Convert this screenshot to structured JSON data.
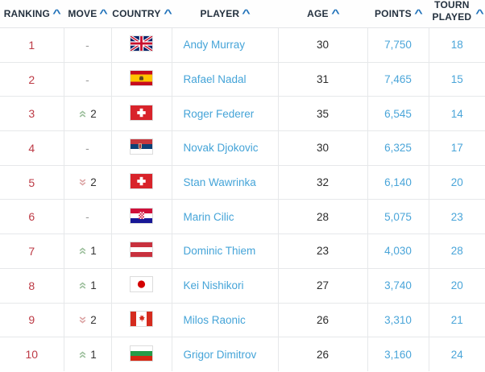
{
  "table": {
    "sort_caret": "^",
    "headers": [
      {
        "id": "ranking",
        "label": "RANKING"
      },
      {
        "id": "move",
        "label": "MOVE"
      },
      {
        "id": "country",
        "label": "COUNTRY"
      },
      {
        "id": "player",
        "label": "PLAYER"
      },
      {
        "id": "age",
        "label": "AGE"
      },
      {
        "id": "points",
        "label": "POINTS"
      },
      {
        "id": "tourn_played",
        "label": "TOURN PLAYED"
      }
    ],
    "rows": [
      {
        "ranking": "1",
        "move_dir": "none",
        "move_label": "-",
        "country_code": "gbr",
        "country": "Great Britain",
        "player": "Andy Murray",
        "age": "30",
        "points": "7,750",
        "tourn_played": "18"
      },
      {
        "ranking": "2",
        "move_dir": "none",
        "move_label": "-",
        "country_code": "esp",
        "country": "Spain",
        "player": "Rafael Nadal",
        "age": "31",
        "points": "7,465",
        "tourn_played": "15"
      },
      {
        "ranking": "3",
        "move_dir": "up",
        "move_label": "2",
        "country_code": "sui",
        "country": "Switzerland",
        "player": "Roger Federer",
        "age": "35",
        "points": "6,545",
        "tourn_played": "14"
      },
      {
        "ranking": "4",
        "move_dir": "none",
        "move_label": "-",
        "country_code": "srb",
        "country": "Serbia",
        "player": "Novak Djokovic",
        "age": "30",
        "points": "6,325",
        "tourn_played": "17"
      },
      {
        "ranking": "5",
        "move_dir": "down",
        "move_label": "2",
        "country_code": "sui",
        "country": "Switzerland",
        "player": "Stan Wawrinka",
        "age": "32",
        "points": "6,140",
        "tourn_played": "20"
      },
      {
        "ranking": "6",
        "move_dir": "none",
        "move_label": "-",
        "country_code": "cro",
        "country": "Croatia",
        "player": "Marin Cilic",
        "age": "28",
        "points": "5,075",
        "tourn_played": "23"
      },
      {
        "ranking": "7",
        "move_dir": "up",
        "move_label": "1",
        "country_code": "aut",
        "country": "Austria",
        "player": "Dominic Thiem",
        "age": "23",
        "points": "4,030",
        "tourn_played": "28"
      },
      {
        "ranking": "8",
        "move_dir": "up",
        "move_label": "1",
        "country_code": "jpn",
        "country": "Japan",
        "player": "Kei Nishikori",
        "age": "27",
        "points": "3,740",
        "tourn_played": "20"
      },
      {
        "ranking": "9",
        "move_dir": "down",
        "move_label": "2",
        "country_code": "can",
        "country": "Canada",
        "player": "Milos Raonic",
        "age": "26",
        "points": "3,310",
        "tourn_played": "21"
      },
      {
        "ranking": "10",
        "move_dir": "up",
        "move_label": "1",
        "country_code": "bul",
        "country": "Bulgaria",
        "player": "Grigor Dimitrov",
        "age": "26",
        "points": "3,160",
        "tourn_played": "24"
      }
    ]
  },
  "colors": {
    "header_text": "#24313f",
    "sort_caret_blue": "#2273ba",
    "rank_red": "#bd3a45",
    "link_blue": "#45a4d8",
    "age_text": "#2b2b2b",
    "move_up_green": "#9cbf9c",
    "move_down_red": "#dca3a3",
    "grid_line": "#e6e8ea"
  }
}
